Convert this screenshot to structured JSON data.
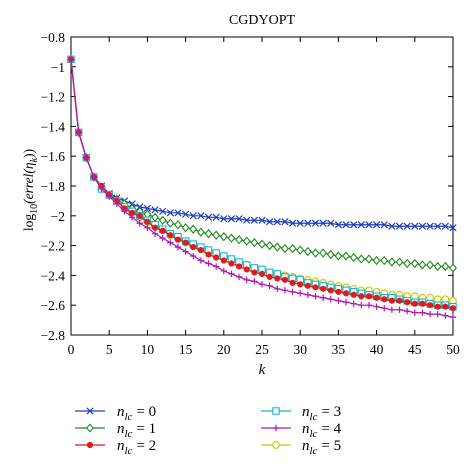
{
  "chart_data": {
    "type": "line",
    "title": "CGDYOPT",
    "xlabel": "k",
    "ylabel": "log10(errel(ηk))",
    "ylabel_parts": {
      "prefix": "log",
      "sub": "10",
      "mid": "(errel(η",
      "sub2": "k",
      "suffix": "))"
    },
    "xlim": [
      0,
      50
    ],
    "ylim": [
      -2.8,
      -0.8
    ],
    "x_ticks": [
      0,
      5,
      10,
      15,
      20,
      25,
      30,
      35,
      40,
      45,
      50
    ],
    "y_ticks": [
      -0.8,
      -1,
      -1.2,
      -1.4,
      -1.6,
      -1.8,
      -2,
      -2.2,
      -2.4,
      -2.6,
      -2.8
    ],
    "x_tick_labels": [
      "0",
      "5",
      "10",
      "15",
      "20",
      "25",
      "30",
      "35",
      "40",
      "45",
      "50"
    ],
    "y_tick_labels": [
      "−0.8",
      "−1",
      "−1.2",
      "−1.4",
      "−1.6",
      "−1.8",
      "−2",
      "−2.2",
      "−2.4",
      "−2.6",
      "−2.8"
    ],
    "grid": false,
    "legend_location": "below",
    "series": [
      {
        "name": "nlc = 0",
        "legend_var": "n",
        "legend_sub": "lc",
        "legend_value": "= 0",
        "color": "#1f3fbf",
        "marker": "x",
        "x": [
          0,
          1,
          2,
          3,
          4,
          5,
          6,
          7,
          8,
          9,
          10,
          11,
          12,
          13,
          14,
          15,
          16,
          17,
          18,
          19,
          20,
          21,
          22,
          23,
          24,
          25,
          26,
          27,
          28,
          29,
          30,
          31,
          32,
          33,
          34,
          35,
          36,
          37,
          38,
          39,
          40,
          41,
          42,
          43,
          44,
          45,
          46,
          47,
          48,
          49,
          50
        ],
        "y": [
          -0.95,
          -1.44,
          -1.61,
          -1.74,
          -1.8,
          -1.85,
          -1.88,
          -1.9,
          -1.92,
          -1.94,
          -1.95,
          -1.96,
          -1.97,
          -1.98,
          -1.98,
          -1.99,
          -2.0,
          -2.0,
          -2.01,
          -2.01,
          -2.02,
          -2.02,
          -2.02,
          -2.03,
          -2.03,
          -2.03,
          -2.04,
          -2.04,
          -2.04,
          -2.05,
          -2.05,
          -2.05,
          -2.05,
          -2.05,
          -2.05,
          -2.06,
          -2.06,
          -2.06,
          -2.06,
          -2.06,
          -2.06,
          -2.06,
          -2.07,
          -2.07,
          -2.07,
          -2.07,
          -2.07,
          -2.07,
          -2.07,
          -2.07,
          -2.08
        ]
      },
      {
        "name": "nlc = 1",
        "legend_var": "n",
        "legend_sub": "lc",
        "legend_value": "= 1",
        "color": "#1e8a1e",
        "marker": "diamond",
        "x": [
          0,
          1,
          2,
          3,
          4,
          5,
          6,
          7,
          8,
          9,
          10,
          11,
          12,
          13,
          14,
          15,
          16,
          17,
          18,
          19,
          20,
          21,
          22,
          23,
          24,
          25,
          26,
          27,
          28,
          29,
          30,
          31,
          32,
          33,
          34,
          35,
          36,
          37,
          38,
          39,
          40,
          41,
          42,
          43,
          44,
          45,
          46,
          47,
          48,
          49,
          50
        ],
        "y": [
          -0.95,
          -1.44,
          -1.61,
          -1.74,
          -1.81,
          -1.86,
          -1.89,
          -1.92,
          -1.95,
          -1.97,
          -1.99,
          -2.01,
          -2.03,
          -2.05,
          -2.06,
          -2.08,
          -2.09,
          -2.11,
          -2.12,
          -2.13,
          -2.14,
          -2.15,
          -2.16,
          -2.17,
          -2.18,
          -2.19,
          -2.2,
          -2.21,
          -2.22,
          -2.22,
          -2.23,
          -2.24,
          -2.25,
          -2.25,
          -2.26,
          -2.27,
          -2.27,
          -2.28,
          -2.29,
          -2.29,
          -2.3,
          -2.3,
          -2.31,
          -2.31,
          -2.32,
          -2.32,
          -2.33,
          -2.33,
          -2.34,
          -2.34,
          -2.35
        ]
      },
      {
        "name": "nlc = 2",
        "legend_var": "n",
        "legend_sub": "lc",
        "legend_value": "= 2",
        "color": "#e01b1b",
        "marker": "dot",
        "x": [
          0,
          1,
          2,
          3,
          4,
          5,
          6,
          7,
          8,
          9,
          10,
          11,
          12,
          13,
          14,
          15,
          16,
          17,
          18,
          19,
          20,
          21,
          22,
          23,
          24,
          25,
          26,
          27,
          28,
          29,
          30,
          31,
          32,
          33,
          34,
          35,
          36,
          37,
          38,
          39,
          40,
          41,
          42,
          43,
          44,
          45,
          46,
          47,
          48,
          49,
          50
        ],
        "y": [
          -0.95,
          -1.44,
          -1.61,
          -1.74,
          -1.8,
          -1.86,
          -1.9,
          -1.95,
          -1.98,
          -2.0,
          -2.04,
          -2.08,
          -2.1,
          -2.13,
          -2.16,
          -2.18,
          -2.21,
          -2.23,
          -2.26,
          -2.28,
          -2.3,
          -2.32,
          -2.34,
          -2.36,
          -2.38,
          -2.39,
          -2.41,
          -2.42,
          -2.43,
          -2.45,
          -2.46,
          -2.47,
          -2.48,
          -2.49,
          -2.5,
          -2.51,
          -2.52,
          -2.53,
          -2.54,
          -2.54,
          -2.55,
          -2.56,
          -2.57,
          -2.57,
          -2.58,
          -2.59,
          -2.59,
          -2.6,
          -2.61,
          -2.61,
          -2.62
        ]
      },
      {
        "name": "nlc = 3",
        "legend_var": "n",
        "legend_sub": "lc",
        "legend_value": "= 3",
        "color": "#18b8c8",
        "marker": "square",
        "x": [
          0,
          1,
          2,
          3,
          4,
          5,
          6,
          7,
          8,
          9,
          10,
          11,
          12,
          13,
          14,
          15,
          16,
          17,
          18,
          19,
          20,
          21,
          22,
          23,
          24,
          25,
          26,
          27,
          28,
          29,
          30,
          31,
          32,
          33,
          34,
          35,
          36,
          37,
          38,
          39,
          40,
          41,
          42,
          43,
          44,
          45,
          46,
          47,
          48,
          49,
          50
        ],
        "y": [
          -0.95,
          -1.44,
          -1.61,
          -1.74,
          -1.82,
          -1.86,
          -1.9,
          -1.94,
          -1.97,
          -2.0,
          -2.03,
          -2.06,
          -2.09,
          -2.12,
          -2.14,
          -2.17,
          -2.19,
          -2.21,
          -2.23,
          -2.25,
          -2.27,
          -2.29,
          -2.31,
          -2.33,
          -2.35,
          -2.36,
          -2.38,
          -2.39,
          -2.41,
          -2.42,
          -2.43,
          -2.45,
          -2.46,
          -2.47,
          -2.48,
          -2.49,
          -2.5,
          -2.51,
          -2.52,
          -2.53,
          -2.54,
          -2.55,
          -2.55,
          -2.56,
          -2.57,
          -2.58,
          -2.58,
          -2.59,
          -2.6,
          -2.6,
          -2.61
        ]
      },
      {
        "name": "nlc = 4",
        "legend_var": "n",
        "legend_sub": "lc",
        "legend_value": "= 4",
        "color": "#b01ab8",
        "marker": "plus",
        "x": [
          0,
          1,
          2,
          3,
          4,
          5,
          6,
          7,
          8,
          9,
          10,
          11,
          12,
          13,
          14,
          15,
          16,
          17,
          18,
          19,
          20,
          21,
          22,
          23,
          24,
          25,
          26,
          27,
          28,
          29,
          30,
          31,
          32,
          33,
          34,
          35,
          36,
          37,
          38,
          39,
          40,
          41,
          42,
          43,
          44,
          45,
          46,
          47,
          48,
          49,
          50
        ],
        "y": [
          -0.95,
          -1.44,
          -1.61,
          -1.74,
          -1.82,
          -1.87,
          -1.92,
          -1.97,
          -2.01,
          -2.05,
          -2.08,
          -2.12,
          -2.15,
          -2.18,
          -2.21,
          -2.24,
          -2.27,
          -2.3,
          -2.32,
          -2.34,
          -2.37,
          -2.39,
          -2.41,
          -2.43,
          -2.44,
          -2.46,
          -2.47,
          -2.49,
          -2.5,
          -2.51,
          -2.52,
          -2.53,
          -2.54,
          -2.55,
          -2.56,
          -2.57,
          -2.58,
          -2.59,
          -2.6,
          -2.6,
          -2.61,
          -2.62,
          -2.63,
          -2.63,
          -2.64,
          -2.65,
          -2.65,
          -2.66,
          -2.66,
          -2.67,
          -2.68
        ]
      },
      {
        "name": "nlc = 5",
        "legend_var": "n",
        "legend_sub": "lc",
        "legend_value": "= 5",
        "color": "#c8c800",
        "marker": "circle",
        "x": [
          0,
          1,
          2,
          3,
          4,
          5,
          6,
          7,
          8,
          9,
          10,
          11,
          12,
          13,
          14,
          15,
          16,
          17,
          18,
          19,
          20,
          21,
          22,
          23,
          24,
          25,
          26,
          27,
          28,
          29,
          30,
          31,
          32,
          33,
          34,
          35,
          36,
          37,
          38,
          39,
          40,
          41,
          42,
          43,
          44,
          45,
          46,
          47,
          48,
          49,
          50
        ],
        "y": [
          -0.95,
          -1.44,
          -1.61,
          -1.74,
          -1.81,
          -1.86,
          -1.9,
          -1.95,
          -1.98,
          -2.01,
          -2.04,
          -2.07,
          -2.1,
          -2.13,
          -2.15,
          -2.18,
          -2.2,
          -2.22,
          -2.24,
          -2.26,
          -2.28,
          -2.3,
          -2.32,
          -2.33,
          -2.35,
          -2.36,
          -2.38,
          -2.39,
          -2.4,
          -2.41,
          -2.42,
          -2.43,
          -2.44,
          -2.45,
          -2.46,
          -2.47,
          -2.48,
          -2.49,
          -2.5,
          -2.5,
          -2.51,
          -2.52,
          -2.53,
          -2.53,
          -2.54,
          -2.54,
          -2.55,
          -2.55,
          -2.56,
          -2.56,
          -2.57
        ]
      }
    ]
  }
}
